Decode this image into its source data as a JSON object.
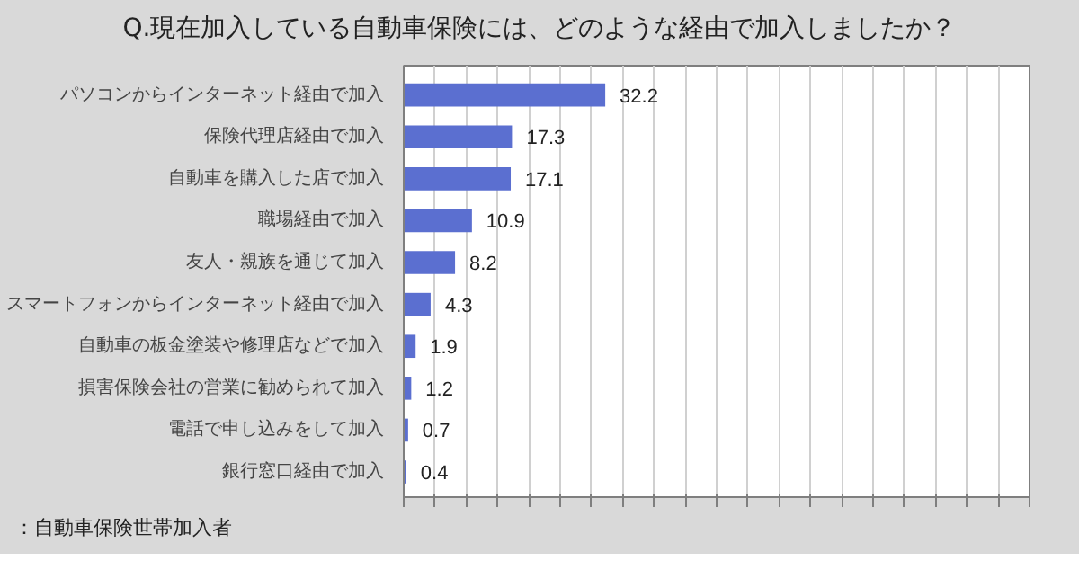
{
  "chart_data": {
    "type": "bar",
    "orientation": "horizontal",
    "title": "Q.現在加入している自動車保険には、どのような経由で加入しましたか？",
    "categories": [
      "パソコンからインターネット経由で加入",
      "保険代理店経由で加入",
      "自動車を購入した店で加入",
      "職場経由で加入",
      "友人・親族を通じて加入",
      "スマートフォンからインターネット経由で加入",
      "自動車の板金塗装や修理店などで加入",
      "損害保険会社の営業に勧められて加入",
      "電話で申し込みをして加入",
      "銀行窓口経由で加入"
    ],
    "values": [
      32.2,
      17.3,
      17.1,
      10.9,
      8.2,
      4.3,
      1.9,
      1.2,
      0.7,
      0.4
    ],
    "color": "#5b6fd0",
    "data_labels": true,
    "xlim": [
      0,
      100
    ],
    "xticks": [
      {
        "value": 0,
        "label": null
      },
      {
        "value": 5,
        "label": null
      },
      {
        "value": 10,
        "label": null
      },
      {
        "value": 15,
        "label": null
      },
      {
        "value": 20,
        "label": null
      },
      {
        "value": 25,
        "label": null
      },
      {
        "value": 30,
        "label": null
      },
      {
        "value": 35,
        "label": null
      },
      {
        "value": 40,
        "label": null
      },
      {
        "value": 45,
        "label": null
      },
      {
        "value": 50,
        "label": null
      },
      {
        "value": 55,
        "label": null
      },
      {
        "value": 60,
        "label": null
      },
      {
        "value": 65,
        "label": null
      },
      {
        "value": 70,
        "label": null
      },
      {
        "value": 75,
        "label": null
      },
      {
        "value": 80,
        "label": null
      },
      {
        "value": 85,
        "label": null
      },
      {
        "value": 90,
        "label": null
      },
      {
        "value": 95,
        "label": null
      },
      {
        "value": 100,
        "label": null
      }
    ],
    "tick_labels": "y",
    "grid": "x",
    "annotations": [
      "：自動車保険世帯加入者"
    ]
  }
}
